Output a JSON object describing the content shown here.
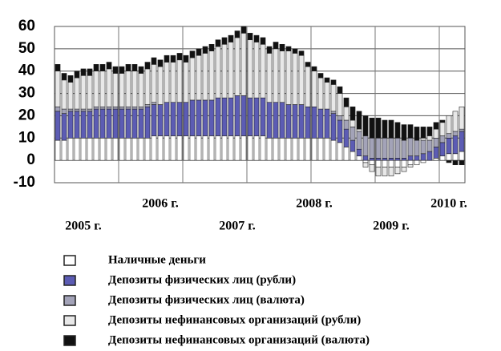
{
  "chart_data": {
    "type": "stacked_bar",
    "categories": [
      null,
      null,
      null,
      null,
      "2005 г.",
      null,
      null,
      null,
      null,
      null,
      null,
      null,
      null,
      null,
      null,
      null,
      "2006 г.",
      null,
      null,
      null,
      null,
      null,
      null,
      null,
      null,
      null,
      null,
      null,
      "2007 г.",
      null,
      null,
      null,
      null,
      null,
      null,
      null,
      null,
      null,
      null,
      null,
      "2008 г.",
      null,
      null,
      null,
      null,
      null,
      null,
      null,
      null,
      null,
      null,
      null,
      "2009 г.",
      null,
      null,
      null,
      null,
      null,
      null,
      null,
      null,
      "2010 г.",
      null,
      null
    ],
    "series": [
      {
        "name": "Наличные деньги",
        "color": "#ffffff",
        "values": [
          9,
          9,
          10,
          10,
          10,
          10,
          10,
          10,
          10,
          10,
          10,
          10,
          10,
          10,
          10,
          11,
          11,
          11,
          11,
          11,
          11,
          11,
          11,
          11,
          11,
          11,
          11,
          11,
          11,
          11,
          11,
          11,
          11,
          10,
          10,
          10,
          10,
          10,
          10,
          10,
          10,
          10,
          10,
          9,
          8,
          6,
          4,
          2,
          -1,
          -2,
          -3,
          -3,
          -3,
          -3,
          -3,
          -2,
          -2,
          -1,
          0,
          1,
          2,
          3,
          3,
          4
        ]
      },
      {
        "name": "Депозиты физических лиц (рубли)",
        "color": "#5c5cb4",
        "values": [
          13,
          12,
          12,
          12,
          12,
          12,
          13,
          13,
          13,
          13,
          13,
          13,
          13,
          13,
          14,
          14,
          14,
          15,
          15,
          15,
          15,
          16,
          16,
          16,
          16,
          17,
          17,
          17,
          18,
          18,
          17,
          17,
          17,
          16,
          16,
          16,
          15,
          15,
          15,
          14,
          14,
          13,
          13,
          12,
          10,
          8,
          5,
          3,
          2,
          1,
          1,
          1,
          1,
          1,
          1,
          2,
          2,
          3,
          4,
          5,
          6,
          7,
          8,
          9
        ]
      },
      {
        "name": "Депозиты физических лиц (валюта)",
        "color": "#a3a3b8",
        "values": [
          2,
          2,
          1,
          1,
          1,
          1,
          1,
          1,
          1,
          1,
          1,
          1,
          1,
          1,
          1,
          1,
          0,
          0,
          0,
          0,
          0,
          0,
          0,
          0,
          0,
          0,
          0,
          0,
          0,
          0,
          0,
          0,
          0,
          0,
          0,
          0,
          0,
          0,
          0,
          0,
          0,
          0,
          0,
          1,
          2,
          4,
          6,
          8,
          9,
          9,
          9,
          9,
          9,
          9,
          8,
          8,
          7,
          6,
          5,
          4,
          3,
          2,
          2,
          1
        ]
      },
      {
        "name": "Депозиты нефинансовых организаций (рубли)",
        "color": "#e8e8e8",
        "values": [
          16,
          13,
          12,
          14,
          15,
          15,
          16,
          16,
          17,
          15,
          15,
          16,
          16,
          15,
          16,
          17,
          17,
          18,
          18,
          19,
          18,
          19,
          20,
          21,
          22,
          23,
          24,
          25,
          26,
          28,
          26,
          25,
          24,
          22,
          24,
          23,
          24,
          23,
          22,
          18,
          16,
          14,
          12,
          12,
          10,
          6,
          3,
          1,
          -2,
          -3,
          -4,
          -4,
          -4,
          -3,
          -2,
          -1,
          0,
          1,
          2,
          4,
          6,
          8,
          9,
          10
        ]
      },
      {
        "name": "Депозиты нефинансовых организаций (валюта)",
        "color": "#111111",
        "values": [
          3,
          3,
          3,
          3,
          3,
          3,
          3,
          3,
          3,
          3,
          3,
          3,
          3,
          3,
          3,
          3,
          3,
          3,
          3,
          3,
          3,
          3,
          3,
          3,
          3,
          3,
          3,
          3,
          3,
          3,
          3,
          3,
          3,
          3,
          3,
          3,
          2,
          2,
          2,
          2,
          2,
          2,
          2,
          2,
          3,
          4,
          6,
          8,
          9,
          9,
          9,
          8,
          8,
          7,
          7,
          6,
          6,
          5,
          4,
          3,
          1,
          -1,
          -2,
          -2
        ]
      }
    ],
    "ylim": [
      -10,
      60
    ],
    "yticks": [
      -10,
      0,
      10,
      20,
      30,
      40,
      50,
      60
    ],
    "grid": true
  }
}
